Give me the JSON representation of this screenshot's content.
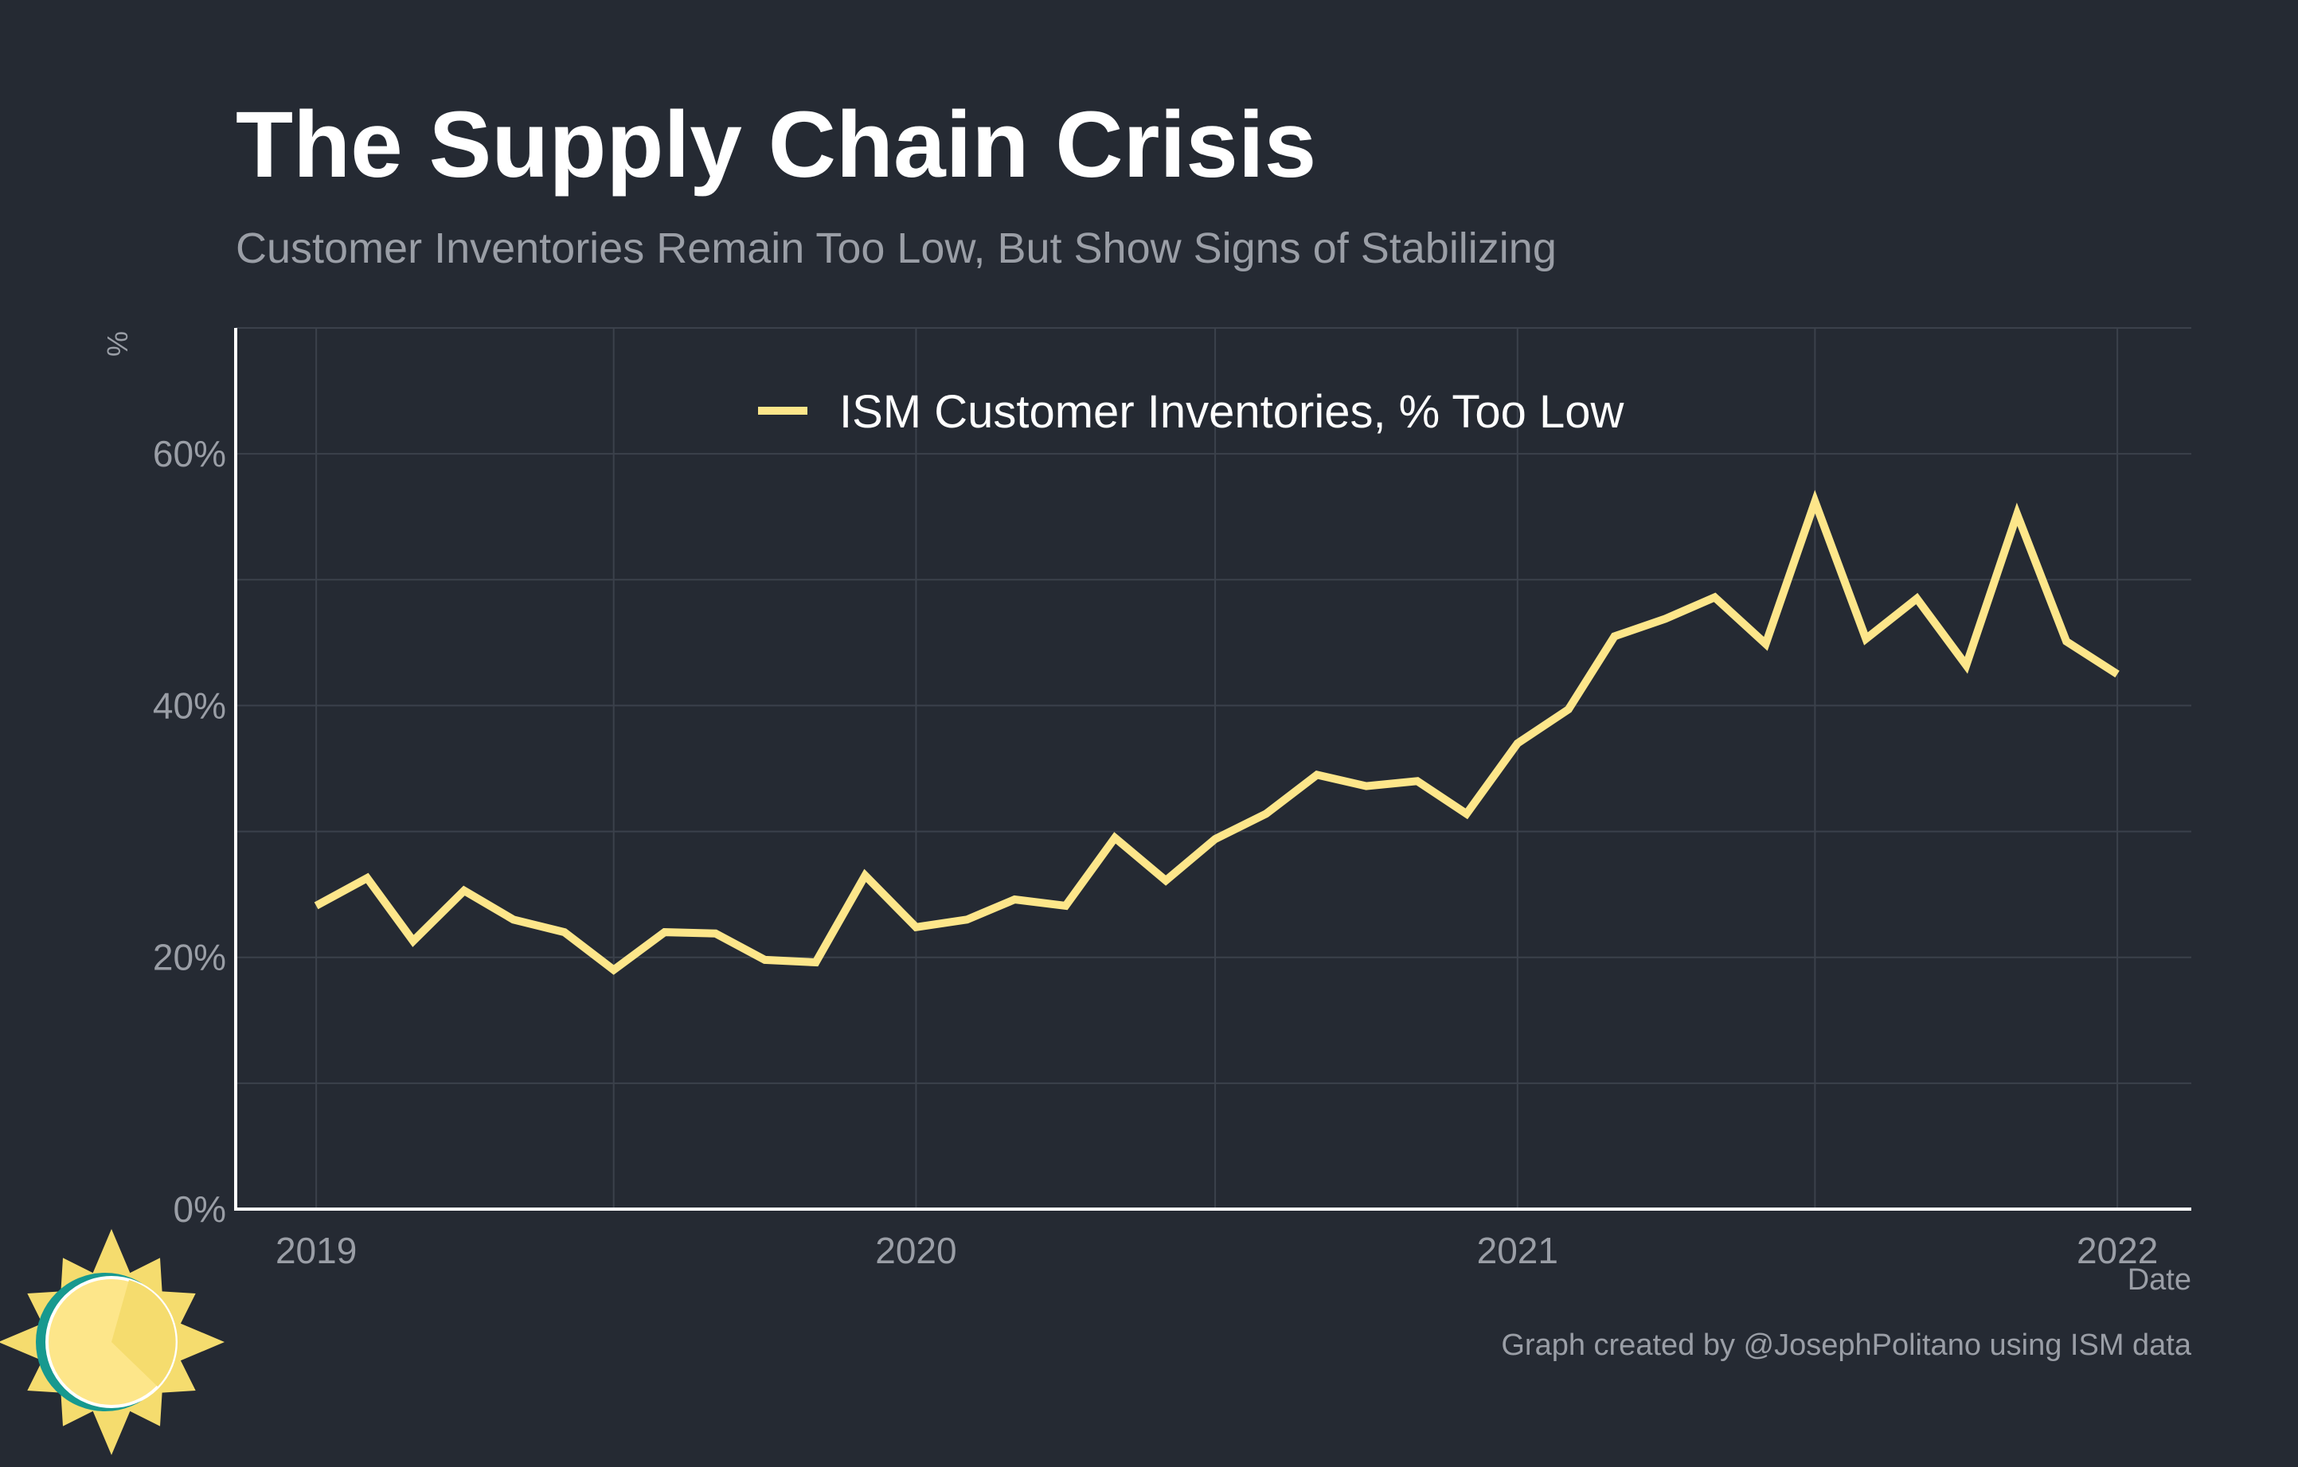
{
  "colors": {
    "background": "#252a33",
    "series": "#fde68a",
    "grid": "#3b414b",
    "axis": "#ffffff",
    "muted_text": "#9a9ea6",
    "logo_teal": "#17998f",
    "logo_sun": "#fde68a",
    "logo_sun_shade": "#f5dc6e"
  },
  "logo": {
    "icon": "sun-icon"
  },
  "chart_data": {
    "type": "line",
    "title": "The Supply Chain Crisis",
    "subtitle": "Customer Inventories Remain Too Low, But Show Signs of Stabilizing",
    "ylabel": "%",
    "xlabel": "Date",
    "caption": "Graph created by @JosephPolitano using ISM data",
    "legend_position": "top-center",
    "grid": true,
    "ylim": [
      0,
      70
    ],
    "xlim": [
      "2018-11-13",
      "2022-02-15"
    ],
    "y_ticks": [
      0,
      20,
      40,
      60
    ],
    "y_tick_labels": [
      "0%",
      "20%",
      "40%",
      "60%"
    ],
    "y_minor_ticks": [
      10,
      30,
      50
    ],
    "x_ticks": [
      "2019-01-01",
      "2020-01-01",
      "2021-01-01",
      "2022-01-01"
    ],
    "x_tick_labels": [
      "2019",
      "2020",
      "2021",
      "2022"
    ],
    "x_minor_ticks": [
      "2019-07-01",
      "2020-07-01",
      "2021-07-01"
    ],
    "series": [
      {
        "name": "ISM Customer Inventories, % Too Low",
        "color": "#fde68a",
        "x": [
          "2019-01-01",
          "2019-02-01",
          "2019-03-01",
          "2019-04-01",
          "2019-05-01",
          "2019-06-01",
          "2019-07-01",
          "2019-08-01",
          "2019-09-01",
          "2019-10-01",
          "2019-11-01",
          "2019-12-01",
          "2020-01-01",
          "2020-02-01",
          "2020-03-01",
          "2020-04-01",
          "2020-05-01",
          "2020-06-01",
          "2020-07-01",
          "2020-08-01",
          "2020-09-01",
          "2020-10-01",
          "2020-11-01",
          "2020-12-01",
          "2021-01-01",
          "2021-02-01",
          "2021-03-01",
          "2021-04-01",
          "2021-05-01",
          "2021-06-01",
          "2021-07-01",
          "2021-08-01",
          "2021-09-01",
          "2021-10-01",
          "2021-11-01",
          "2021-12-01",
          "2022-01-01"
        ],
        "values": [
          24.1,
          26.3,
          21.3,
          25.3,
          23.0,
          22.0,
          19.0,
          22.0,
          21.9,
          19.8,
          19.6,
          26.5,
          22.4,
          23.0,
          24.6,
          24.1,
          29.5,
          26.1,
          29.4,
          31.4,
          34.5,
          33.6,
          34.0,
          31.4,
          37.0,
          39.7,
          45.5,
          46.9,
          48.6,
          44.9,
          56.2,
          45.3,
          48.5,
          43.2,
          55.2,
          45.1,
          42.5
        ]
      }
    ]
  }
}
